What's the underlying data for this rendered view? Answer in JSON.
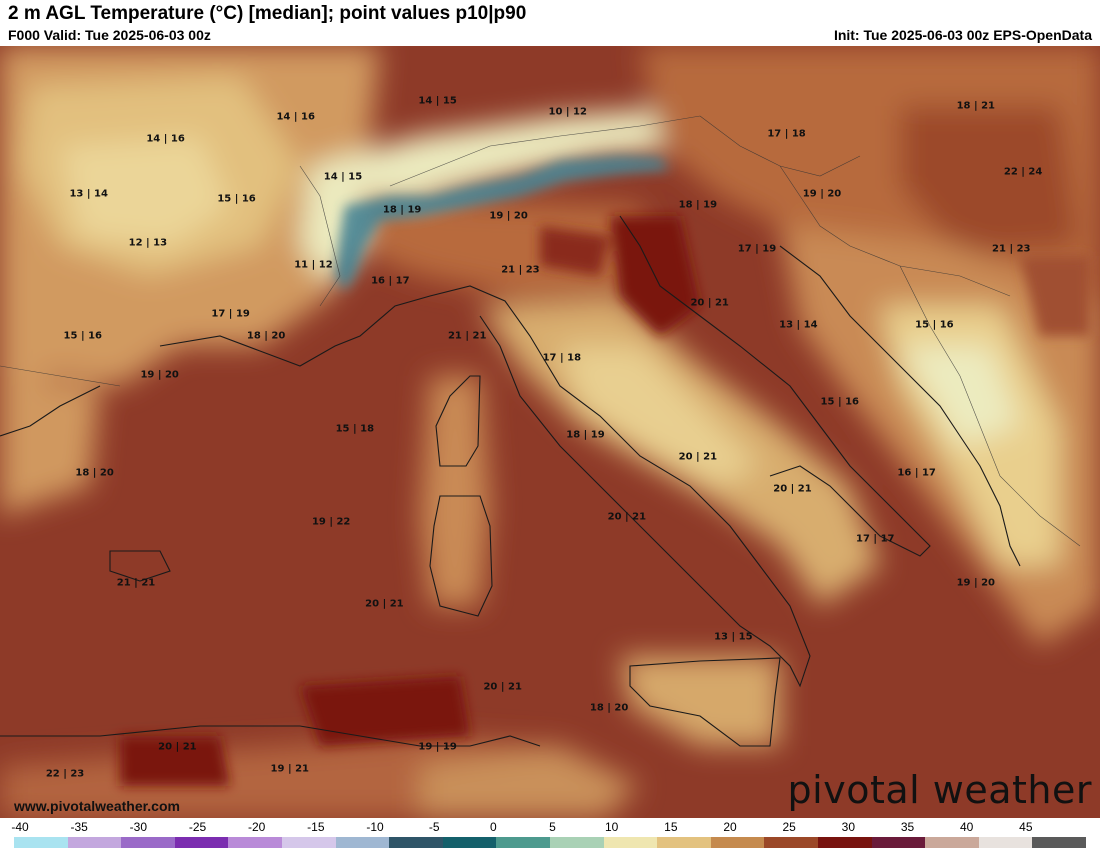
{
  "header": {
    "title": "2 m AGL Temperature (°C) [median]; point values p10|p90",
    "valid": "F000 Valid: Tue 2025-06-03 00z",
    "init": "Init: Tue 2025-06-03 00z EPS-OpenData"
  },
  "branding": {
    "logo_text": "pivotal weather",
    "website": "www.pivotalweather.com"
  },
  "point_values": [
    {
      "label": "14 | 16",
      "x": 8.6,
      "y": 47.9
    },
    {
      "label": "14 | 16",
      "x": 10.8,
      "y": 48.3
    },
    {
      "label": "14 | 15",
      "x": 13.2,
      "y": 48.6
    },
    {
      "label": "10 | 12",
      "x": 15.4,
      "y": 48.4
    },
    {
      "label": "17 | 18",
      "x": 19.1,
      "y": 48.0
    },
    {
      "label": "18 | 21",
      "x": 22.3,
      "y": 48.5
    },
    {
      "label": "13 | 14",
      "x": 7.3,
      "y": 46.9
    },
    {
      "label": "15 | 16",
      "x": 9.8,
      "y": 46.8
    },
    {
      "label": "14 | 15",
      "x": 11.6,
      "y": 47.2
    },
    {
      "label": "18 | 19",
      "x": 12.6,
      "y": 46.6
    },
    {
      "label": "19 | 20",
      "x": 14.4,
      "y": 46.5
    },
    {
      "label": "18 | 19",
      "x": 17.6,
      "y": 46.7
    },
    {
      "label": "19 | 20",
      "x": 19.7,
      "y": 46.9
    },
    {
      "label": "22 | 24",
      "x": 23.1,
      "y": 47.3
    },
    {
      "label": "12 | 13",
      "x": 8.3,
      "y": 46.0
    },
    {
      "label": "11 | 12",
      "x": 11.1,
      "y": 45.6
    },
    {
      "label": "16 | 17",
      "x": 12.4,
      "y": 45.3
    },
    {
      "label": "21 | 23",
      "x": 14.6,
      "y": 45.5
    },
    {
      "label": "17 | 19",
      "x": 18.6,
      "y": 45.9
    },
    {
      "label": "21 | 23",
      "x": 22.9,
      "y": 45.9
    },
    {
      "label": "20 | 21",
      "x": 17.8,
      "y": 44.9
    },
    {
      "label": "17 | 19",
      "x": 9.7,
      "y": 44.7
    },
    {
      "label": "15 | 16",
      "x": 7.2,
      "y": 44.3
    },
    {
      "label": "18 | 20",
      "x": 10.3,
      "y": 44.3
    },
    {
      "label": "21 | 21",
      "x": 13.7,
      "y": 44.3
    },
    {
      "label": "17 | 18",
      "x": 15.3,
      "y": 43.9
    },
    {
      "label": "13 | 14",
      "x": 19.3,
      "y": 44.5
    },
    {
      "label": "15 | 16",
      "x": 21.6,
      "y": 44.5
    },
    {
      "label": "19 | 20",
      "x": 8.5,
      "y": 43.6
    },
    {
      "label": "15 | 16",
      "x": 20.0,
      "y": 43.1
    },
    {
      "label": "15 | 18",
      "x": 11.8,
      "y": 42.6
    },
    {
      "label": "18 | 19",
      "x": 15.7,
      "y": 42.5
    },
    {
      "label": "20 | 21",
      "x": 17.6,
      "y": 42.1
    },
    {
      "label": "18 | 20",
      "x": 7.4,
      "y": 41.8
    },
    {
      "label": "16 | 17",
      "x": 21.3,
      "y": 41.8
    },
    {
      "label": "20 | 21",
      "x": 19.2,
      "y": 41.5
    },
    {
      "label": "20 | 21",
      "x": 16.4,
      "y": 41.0
    },
    {
      "label": "19 | 22",
      "x": 11.4,
      "y": 40.9
    },
    {
      "label": "17 | 17",
      "x": 20.6,
      "y": 40.6
    },
    {
      "label": "21 | 21",
      "x": 8.1,
      "y": 39.8
    },
    {
      "label": "19 | 20",
      "x": 22.3,
      "y": 39.8
    },
    {
      "label": "20 | 21",
      "x": 12.3,
      "y": 39.4
    },
    {
      "label": "13 | 15",
      "x": 18.2,
      "y": 38.8
    },
    {
      "label": "20 | 21",
      "x": 14.3,
      "y": 37.9
    },
    {
      "label": "18 | 20",
      "x": 16.1,
      "y": 37.5
    },
    {
      "label": "20 | 21",
      "x": 8.8,
      "y": 36.8
    },
    {
      "label": "19 | 19",
      "x": 13.2,
      "y": 36.8
    },
    {
      "label": "19 | 21",
      "x": 10.7,
      "y": 36.4
    },
    {
      "label": "22 | 23",
      "x": 6.9,
      "y": 36.3
    }
  ],
  "map_extent": {
    "lon": [
      5.8,
      24.4
    ],
    "lat": [
      35.5,
      49.6
    ]
  },
  "legend": {
    "ticks": [
      "-40",
      "-35",
      "-30",
      "-25",
      "-20",
      "-15",
      "-10",
      "-5",
      "0",
      "5",
      "10",
      "15",
      "20",
      "25",
      "30",
      "35",
      "40",
      "45"
    ],
    "range": [
      -40,
      50
    ],
    "colors": [
      "#a9e3f0",
      "#c3a7de",
      "#9a6ac8",
      "#7b2db0",
      "#b98ad8",
      "#d5c7ea",
      "#9fb7d2",
      "#2f5568",
      "#14606b",
      "#4d9a8e",
      "#a9d1b5",
      "#efe6b0",
      "#e3c27f",
      "#c58a4e",
      "#9b4828",
      "#78130f",
      "#6a1b3a",
      "#caa89a",
      "#e8e2de",
      "#5a5a5a"
    ]
  },
  "colors": {
    "hot": "#8e3a28",
    "very_hot": "#7a1310",
    "warm_land": "#c98a55",
    "mild": "#e9cf8d",
    "cool": "#ecebbf",
    "cold": "#2e6e82"
  }
}
